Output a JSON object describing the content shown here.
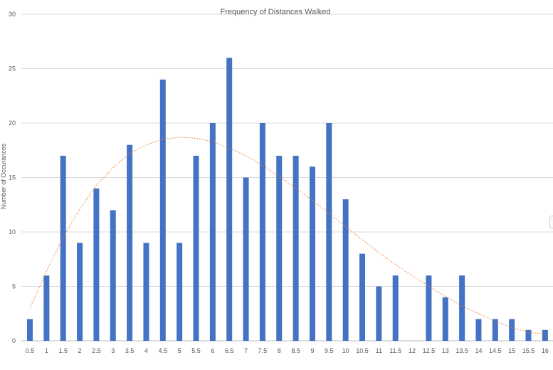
{
  "chart_data": {
    "type": "bar",
    "title": "Frequency of Distances Walked",
    "xlabel": "",
    "ylabel": "Number of Occurances",
    "categories": [
      "0.5",
      "1",
      "1.5",
      "2",
      "2.5",
      "3",
      "3.5",
      "4",
      "4.5",
      "5",
      "5.5",
      "6",
      "6.5",
      "7",
      "7.5",
      "8",
      "8.5",
      "9",
      "9.5",
      "10",
      "10.5",
      "11",
      "11.5",
      "12",
      "12.5",
      "13",
      "13.5",
      "14",
      "14.5",
      "15",
      "15.5",
      "16"
    ],
    "values": [
      2,
      6,
      17,
      9,
      14,
      12,
      18,
      9,
      24,
      9,
      17,
      20,
      26,
      15,
      20,
      17,
      17,
      16,
      20,
      13,
      8,
      5,
      6,
      0,
      6,
      4,
      6,
      2,
      2,
      2,
      1,
      1
    ],
    "ylim": [
      0,
      30
    ],
    "yticks": [
      0,
      5,
      10,
      15,
      20,
      25,
      30
    ],
    "grid": true,
    "legend": "none",
    "trendline": {
      "type": "polynomial",
      "style": "dotted",
      "values": [
        3.0,
        6.4,
        9.5,
        12.1,
        14.3,
        15.9,
        17.2,
        18.0,
        18.5,
        18.7,
        18.6,
        18.3,
        17.7,
        17.0,
        16.1,
        15.1,
        14.0,
        12.9,
        11.7,
        10.5,
        9.3,
        8.1,
        7.0,
        6.0,
        5.0,
        4.1,
        3.2,
        2.5,
        1.8,
        1.2,
        0.8,
        0.6
      ]
    },
    "colors": {
      "bar": "#4472C4",
      "trendline": "#ED7D31",
      "grid": "#D9D9D9",
      "text": "#595959"
    }
  }
}
